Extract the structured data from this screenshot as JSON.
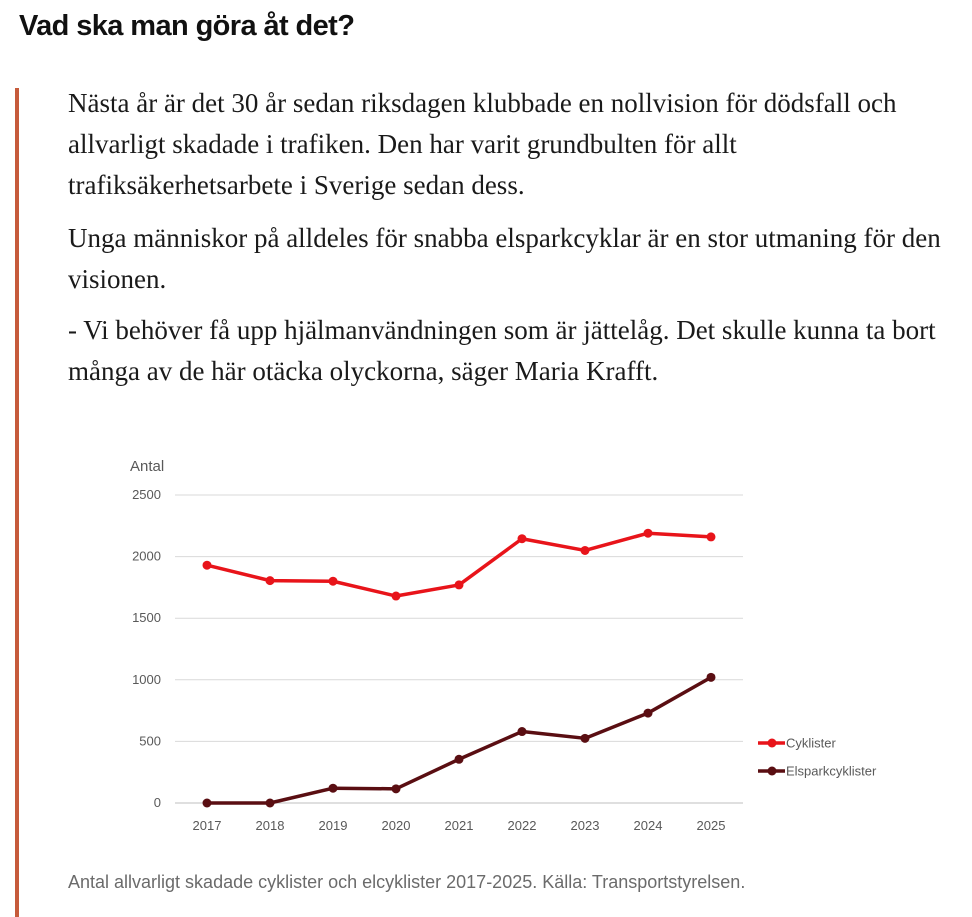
{
  "article": {
    "heading": "Vad ska man göra åt det?",
    "paragraphs": [
      "Nästa år är det 30 år sedan riksdagen klubbade en nollvision för dödsfall och allvarligt skadade i trafiken. Den har varit grundbulten för allt trafiksäkerhetsarbete i Sverige sedan dess.",
      "Unga människor på alldeles för snabba elsparkcyklar är en stor utmaning för den visionen.",
      "- Vi behöver få upp hjälmanvändningen som är jättelåg. Det skulle kunna ta bort många av de här otäcka olyckorna, säger Maria Krafft."
    ],
    "caption": "Antal allvarligt skadade cyklister och elcyklister 2017-2025. Källa: Transportstyrelsen.",
    "accent_color": "#c65b3b"
  },
  "chart_data": {
    "type": "line",
    "title": "",
    "xlabel": "",
    "ylabel": "Antal",
    "categories": [
      "2017",
      "2018",
      "2019",
      "2020",
      "2021",
      "2022",
      "2023",
      "2024",
      "2025"
    ],
    "ylim": [
      0,
      2500
    ],
    "yticks": [
      "0",
      "500",
      "1000",
      "1500",
      "2000",
      "2500"
    ],
    "grid": true,
    "legend_position": "right",
    "series": [
      {
        "name": "Cyklister",
        "color": "#e8141a",
        "values": [
          1930,
          1805,
          1800,
          1680,
          1770,
          2145,
          2050,
          2190,
          2160
        ]
      },
      {
        "name": "Elsparkcyklister",
        "color": "#5a0e12",
        "values": [
          0,
          0,
          120,
          115,
          355,
          580,
          525,
          730,
          1020
        ]
      }
    ]
  }
}
